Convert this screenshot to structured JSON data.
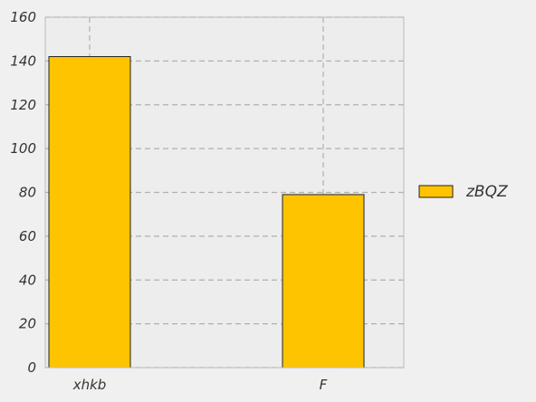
{
  "chart_data": {
    "type": "bar",
    "title": "",
    "xlabel": "",
    "ylabel": "",
    "categories": [
      "xhkb",
      "F"
    ],
    "series": [
      {
        "name": "zBQZ",
        "values": [
          142,
          79
        ],
        "color": "#ffc400"
      }
    ],
    "ylim": [
      0,
      160
    ],
    "yticks": [
      0,
      20,
      40,
      60,
      80,
      100,
      120,
      140,
      160
    ],
    "grid": true,
    "legend_position": "right",
    "colors": {
      "plot_background": "#ededed",
      "page_background": "#f0f0f0",
      "grid": "#b0b0b0",
      "bar_edge": "#222222",
      "axes_edge": "#bcbcbc"
    }
  }
}
